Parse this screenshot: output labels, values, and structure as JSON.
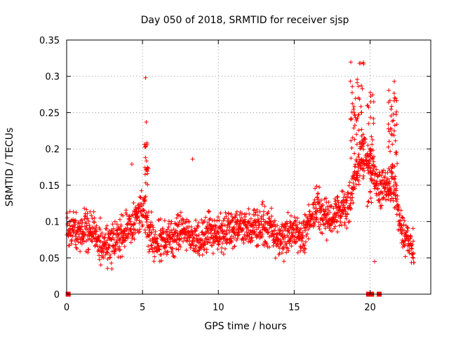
{
  "chart_data": {
    "type": "scatter",
    "title": "Day 050 of 2018, SRMTID for receiver sjsp",
    "xlabel": "GPS time / hours",
    "ylabel": "SRMTID / TECUs",
    "xlim": [
      0,
      24
    ],
    "ylim": [
      0,
      0.35
    ],
    "xticks": [
      0,
      5,
      10,
      15,
      20
    ],
    "xtick_labels": [
      "0",
      "5",
      "10",
      "15",
      "20"
    ],
    "yticks": [
      0,
      0.05,
      0.1,
      0.15,
      0.2,
      0.25,
      0.3,
      0.35
    ],
    "ytick_labels": [
      "0",
      "0.05",
      "0.1",
      "0.15",
      "0.2",
      "0.25",
      "0.3",
      "0.35"
    ],
    "grid": true,
    "marker": "plus",
    "color": "#ff0000",
    "marker_color": "#ff0000",
    "series": [
      {
        "name": "SRMTID",
        "sampled": true,
        "trend_x": [
          0.0,
          0.5,
          1.0,
          1.5,
          2.0,
          2.5,
          3.0,
          3.5,
          4.0,
          4.5,
          5.0,
          5.5,
          6.0,
          6.5,
          7.0,
          7.5,
          8.0,
          8.5,
          9.0,
          9.5,
          10.0,
          10.5,
          11.0,
          11.5,
          12.0,
          12.5,
          13.0,
          13.5,
          14.0,
          14.5,
          15.0,
          15.5,
          16.0,
          16.5,
          17.0,
          17.5,
          18.0,
          18.5,
          19.0,
          19.5,
          20.0,
          20.5,
          21.0,
          21.5,
          22.0,
          22.5,
          22.9
        ],
        "trend_y": [
          0.085,
          0.09,
          0.085,
          0.09,
          0.075,
          0.07,
          0.07,
          0.075,
          0.09,
          0.1,
          0.12,
          0.08,
          0.075,
          0.075,
          0.08,
          0.085,
          0.085,
          0.075,
          0.08,
          0.09,
          0.085,
          0.085,
          0.09,
          0.095,
          0.09,
          0.09,
          0.095,
          0.09,
          0.075,
          0.08,
          0.085,
          0.08,
          0.1,
          0.12,
          0.11,
          0.1,
          0.12,
          0.115,
          0.16,
          0.2,
          0.18,
          0.15,
          0.14,
          0.16,
          0.09,
          0.07,
          0.06
        ],
        "spread": 0.03,
        "bursts": [
          {
            "x_start": 5.1,
            "x_end": 5.4,
            "y_low": 0.15,
            "y_high": 0.21
          },
          {
            "x_start": 18.7,
            "x_end": 19.6,
            "y_low": 0.15,
            "y_high": 0.32
          },
          {
            "x_start": 19.8,
            "x_end": 20.3,
            "y_low": 0.12,
            "y_high": 0.28
          },
          {
            "x_start": 21.2,
            "x_end": 21.8,
            "y_low": 0.15,
            "y_high": 0.29
          }
        ],
        "outliers": [
          {
            "x": 5.2,
            "y": 0.298
          },
          {
            "x": 5.25,
            "y": 0.237
          },
          {
            "x": 8.3,
            "y": 0.186
          },
          {
            "x": 4.3,
            "y": 0.179
          },
          {
            "x": 19.3,
            "y": 0.318
          },
          {
            "x": 21.6,
            "y": 0.293
          },
          {
            "x": 20.3,
            "y": 0.045
          }
        ]
      }
    ],
    "zero_markers_x": [
      0.1,
      19.9,
      20.1,
      20.6
    ]
  }
}
